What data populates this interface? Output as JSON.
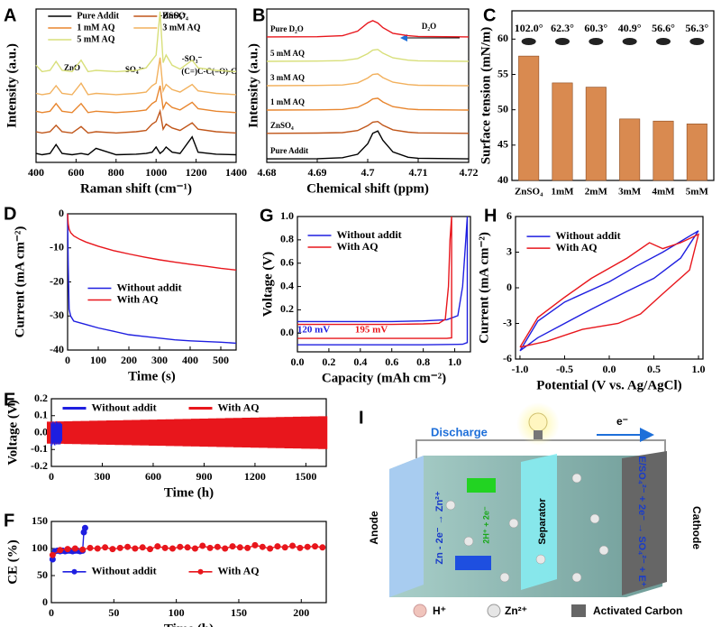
{
  "chart_data": [
    {
      "type": "line",
      "panel_label": "A",
      "xlabel": "Raman shift (cm⁻¹)",
      "ylabel": "Intensity (a.u.)",
      "xlim": [
        400,
        1400
      ],
      "xticks": [
        400,
        600,
        800,
        1000,
        1200,
        1400
      ],
      "ylim": [
        0,
        6
      ],
      "legend": "upper left",
      "legend_columns": 2,
      "annotations": [
        "ZnO",
        "SO₄²⁻",
        "-HSO₄⁻",
        "-SO₃⁻",
        "(C=)C-C(=O)-C"
      ],
      "x": [
        400,
        430,
        470,
        500,
        530,
        580,
        625,
        660,
        700,
        800,
        900,
        950,
        980,
        1000,
        1020,
        1035,
        1050,
        1080,
        1120,
        1180,
        1210,
        1300,
        1400
      ],
      "series": [
        {
          "name": "Pure Addit",
          "color": "#000000",
          "values": [
            0.35,
            0.3,
            0.35,
            0.7,
            0.35,
            0.3,
            0.35,
            0.3,
            0.55,
            0.3,
            0.32,
            0.35,
            0.4,
            0.6,
            0.35,
            0.45,
            0.6,
            0.4,
            0.35,
            1.0,
            0.4,
            0.32,
            0.3
          ]
        },
        {
          "name": "ZnSO₄",
          "color": "#c0561a",
          "values": [
            1.2,
            1.15,
            1.2,
            1.45,
            1.2,
            1.15,
            1.4,
            1.15,
            1.2,
            1.15,
            1.2,
            1.25,
            1.5,
            1.6,
            2.0,
            1.3,
            1.5,
            1.35,
            1.25,
            1.55,
            1.3,
            1.2,
            1.15
          ]
        },
        {
          "name": "1 mM AQ",
          "color": "#e8862f",
          "values": [
            2.0,
            1.95,
            2.0,
            2.3,
            2.0,
            1.95,
            2.3,
            1.95,
            2.0,
            1.95,
            2.0,
            2.05,
            2.3,
            2.4,
            3.0,
            2.1,
            2.35,
            2.15,
            2.05,
            2.35,
            2.1,
            2.0,
            1.95
          ]
        },
        {
          "name": "3 mM AQ",
          "color": "#f2b15e",
          "values": [
            2.7,
            2.65,
            2.7,
            3.0,
            2.7,
            2.65,
            3.1,
            2.65,
            2.7,
            2.65,
            2.7,
            2.75,
            3.0,
            3.1,
            4.1,
            2.8,
            3.05,
            2.85,
            2.75,
            3.05,
            2.8,
            2.7,
            2.65
          ]
        },
        {
          "name": "5 mM AQ",
          "color": "#d8df7a",
          "values": [
            3.8,
            3.55,
            3.6,
            3.95,
            3.6,
            3.55,
            4.0,
            3.55,
            3.6,
            3.55,
            3.6,
            3.7,
            4.0,
            4.2,
            5.9,
            3.9,
            4.2,
            3.8,
            3.65,
            4.0,
            3.7,
            3.6,
            3.55
          ]
        }
      ]
    },
    {
      "type": "line",
      "panel_label": "B",
      "xlabel": "Chemical shift (ppm)",
      "ylabel": "Intensity (a.u.)",
      "xlim": [
        4.68,
        4.72
      ],
      "xticks": [
        4.68,
        4.69,
        4.7,
        4.71,
        4.72
      ],
      "ylim": [
        0,
        6.6
      ],
      "legend": "inline",
      "annotations": [
        "D₂O"
      ],
      "x": [
        4.68,
        4.69,
        4.695,
        4.698,
        4.7,
        4.701,
        4.702,
        4.703,
        4.705,
        4.708,
        4.71,
        4.72
      ],
      "series": [
        {
          "name": "Pure Addit",
          "color": "#000000",
          "values": [
            0.15,
            0.16,
            0.2,
            0.35,
            0.8,
            1.25,
            1.35,
            0.95,
            0.45,
            0.22,
            0.18,
            0.15
          ]
        },
        {
          "name": "ZnSO₄",
          "color": "#c0561a",
          "values": [
            1.25,
            1.26,
            1.28,
            1.37,
            1.58,
            1.73,
            1.76,
            1.6,
            1.4,
            1.3,
            1.27,
            1.25
          ]
        },
        {
          "name": "1 mM AQ",
          "color": "#e8862f",
          "values": [
            2.25,
            2.26,
            2.28,
            2.37,
            2.58,
            2.73,
            2.76,
            2.6,
            2.4,
            2.3,
            2.27,
            2.25
          ]
        },
        {
          "name": "3 mM AQ",
          "color": "#f2b15e",
          "values": [
            3.3,
            3.31,
            3.33,
            3.42,
            3.63,
            3.78,
            3.81,
            3.65,
            3.45,
            3.35,
            3.32,
            3.3
          ]
        },
        {
          "name": "5 mM AQ",
          "color": "#d8df7a",
          "values": [
            4.35,
            4.36,
            4.38,
            4.47,
            4.68,
            4.83,
            4.86,
            4.7,
            4.5,
            4.4,
            4.37,
            4.35
          ]
        },
        {
          "name": "Pure D₂O",
          "color": "#e8161c",
          "values": [
            5.4,
            5.41,
            5.45,
            5.65,
            6.0,
            6.1,
            6.0,
            5.8,
            5.55,
            5.45,
            5.42,
            5.4
          ]
        }
      ]
    },
    {
      "type": "bar",
      "panel_label": "C",
      "ylabel": "Surface tension (mN/m)",
      "categories": [
        "ZnSO₄",
        "1mM",
        "2mM",
        "3mM",
        "4mM",
        "5mM"
      ],
      "values": [
        57.6,
        53.8,
        53.2,
        48.7,
        48.4,
        48.0
      ],
      "color": "#d98a50",
      "bar_annotations": [
        "102.0°",
        "62.3°",
        "60.3°",
        "40.9°",
        "56.6°",
        "56.3°"
      ],
      "ylim": [
        40,
        64
      ],
      "yticks": [
        40,
        45,
        50,
        55,
        60
      ]
    },
    {
      "type": "line",
      "panel_label": "D",
      "xlabel": "Time (s)",
      "ylabel": "Current (mA cm⁻²)",
      "xlim": [
        0,
        550
      ],
      "xticks": [
        0,
        100,
        200,
        300,
        400,
        500
      ],
      "ylim": [
        -40,
        0
      ],
      "yticks": [
        0,
        -10,
        -20,
        -30,
        -40
      ],
      "legend": "center",
      "x": [
        0,
        2,
        5,
        10,
        20,
        40,
        60,
        100,
        150,
        200,
        250,
        300,
        350,
        400,
        450,
        500,
        550
      ],
      "series": [
        {
          "name": "Without addit",
          "color": "#1f1fe0",
          "values": [
            0,
            -15,
            -28,
            -30,
            -31.5,
            -32,
            -32.5,
            -33.5,
            -34.5,
            -35.5,
            -36,
            -36.5,
            -37,
            -37.3,
            -37.5,
            -37.7,
            -38
          ]
        },
        {
          "name": "With AQ",
          "color": "#e8161c",
          "values": [
            0,
            -3,
            -4.5,
            -5.5,
            -6.5,
            -7.5,
            -8.3,
            -9.5,
            -10.8,
            -11.8,
            -12.7,
            -13.5,
            -14.2,
            -14.8,
            -15.4,
            -16,
            -16.5
          ]
        }
      ]
    },
    {
      "type": "line",
      "panel_label": "G",
      "xlabel": "Capacity (mAh cm⁻²)",
      "ylabel": "Voltage (V)",
      "xlim": [
        0,
        1.1
      ],
      "xticks": [
        {
          "value": 0,
          "label": "0.0"
        },
        0.2,
        0.4,
        0.6,
        0.8,
        {
          "value": 1,
          "label": "1.0"
        }
      ],
      "ylim": [
        -0.16,
        1.0
      ],
      "yticks": [
        {
          "value": 0,
          "label": "0.0"
        },
        0.2,
        0.4,
        0.6,
        0.8,
        {
          "value": 1,
          "label": "1.0"
        }
      ],
      "legend": "upper left",
      "annotations": [
        "120 mV",
        "195 mV"
      ],
      "series": [
        {
          "name": "Without addit",
          "color": "#1f1fe0",
          "x": [
            0,
            0.2,
            0.4,
            0.6,
            0.8,
            0.95,
            1.02,
            1.05,
            1.07,
            1.08,
            1.08,
            1.05,
            0.8,
            0.4,
            0
          ],
          "values": [
            0.1,
            0.1,
            0.1,
            0.1,
            0.105,
            0.115,
            0.15,
            0.4,
            0.8,
            1.0,
            -0.08,
            -0.095,
            -0.1,
            -0.1,
            -0.1
          ]
        },
        {
          "name": "With AQ",
          "color": "#e8161c",
          "x": [
            0,
            0.2,
            0.4,
            0.6,
            0.8,
            0.9,
            0.94,
            0.96,
            0.97,
            0.98,
            0.98,
            0.95,
            0.6,
            0.2,
            0
          ],
          "values": [
            0.075,
            0.075,
            0.075,
            0.075,
            0.08,
            0.085,
            0.12,
            0.4,
            0.8,
            1.0,
            -0.04,
            -0.045,
            -0.045,
            -0.045,
            -0.045
          ]
        }
      ]
    },
    {
      "type": "line",
      "panel_label": "H",
      "xlabel": "Potential (V vs. Ag/AgCl)",
      "ylabel": "Current (mA cm⁻²)",
      "xlim": [
        -1.05,
        1.05
      ],
      "xticks": [
        {
          "value": -1,
          "label": "-1.0"
        },
        -0.5,
        {
          "value": 0,
          "label": "0.0"
        },
        0.5,
        {
          "value": 1,
          "label": "1.0"
        }
      ],
      "ylim": [
        -6,
        6
      ],
      "yticks": [
        -6,
        -3,
        0,
        3,
        6
      ],
      "legend": "upper left",
      "series": [
        {
          "name": "Without addit",
          "color": "#1f1fe0",
          "x": [
            -1,
            -0.8,
            -0.5,
            0,
            0.3,
            0.6,
            1.0,
            0.8,
            0.5,
            0.2,
            -0.2,
            -0.5,
            -0.8,
            -1
          ],
          "values": [
            -5.3,
            -2.8,
            -1.2,
            0.5,
            1.8,
            3,
            4.8,
            2.5,
            0.8,
            -0.3,
            -1.8,
            -3,
            -4.2,
            -5.3
          ]
        },
        {
          "name": "With AQ",
          "color": "#e8161c",
          "x": [
            -1,
            -0.8,
            -0.5,
            -0.2,
            0.2,
            0.45,
            0.6,
            0.8,
            1.0,
            0.9,
            0.6,
            0.35,
            0.1,
            -0.3,
            -0.7,
            -1
          ],
          "values": [
            -5,
            -2.5,
            -0.8,
            0.8,
            2.5,
            3.8,
            3.3,
            3.8,
            4.5,
            1.5,
            -0.5,
            -2.2,
            -3.0,
            -3.5,
            -4.5,
            -5
          ]
        }
      ]
    },
    {
      "type": "band",
      "panel_label": "E",
      "xlabel": "Time (h)",
      "ylabel": "Voltage (V)",
      "xlim": [
        0,
        1620
      ],
      "xticks": [
        0,
        300,
        600,
        900,
        1200,
        1500
      ],
      "ylim": [
        -0.2,
        0.2
      ],
      "yticks": [
        -0.2,
        -0.1,
        {
          "value": 0,
          "label": "0.0"
        },
        0.1,
        0.2
      ],
      "legend": "upper center",
      "legend_columns": 2,
      "series": [
        {
          "name": "Without addit",
          "color": "#1f1fe0",
          "x": [
            0,
            5,
            10,
            15,
            20,
            25,
            30,
            35,
            40,
            45,
            50,
            55,
            60
          ],
          "values": [
            0.06,
            0.05,
            0.065,
            0.055,
            0.06,
            0.05,
            0.065,
            0.055,
            0.06,
            0.05,
            0.06,
            0.055,
            0.05
          ],
          "lower_values": [
            -0.08,
            -0.06,
            -0.07,
            -0.06,
            -0.075,
            -0.06,
            -0.07,
            -0.06,
            -0.07,
            -0.06,
            -0.07,
            -0.06,
            -0.05
          ]
        },
        {
          "name": "With AQ",
          "color": "#e8161c",
          "x": [
            0,
            50,
            100,
            150,
            200,
            250,
            300,
            350,
            400,
            450,
            500,
            550,
            600,
            650,
            700,
            750,
            800,
            850,
            900,
            950,
            1000,
            1050,
            1100,
            1150,
            1200,
            1250,
            1300,
            1350,
            1400,
            1450,
            1500,
            1550,
            1600
          ],
          "values": [
            0.065,
            0.066,
            0.067,
            0.068,
            0.069,
            0.07,
            0.071,
            0.072,
            0.073,
            0.074,
            0.075,
            0.076,
            0.077,
            0.078,
            0.079,
            0.08,
            0.081,
            0.082,
            0.083,
            0.084,
            0.085,
            0.086,
            0.087,
            0.088,
            0.089,
            0.09,
            0.091,
            0.092,
            0.093,
            0.094,
            0.095,
            0.096,
            0.097
          ],
          "lower_values": [
            -0.065,
            -0.066,
            -0.067,
            -0.068,
            -0.069,
            -0.07,
            -0.071,
            -0.072,
            -0.073,
            -0.074,
            -0.075,
            -0.076,
            -0.077,
            -0.078,
            -0.079,
            -0.08,
            -0.081,
            -0.082,
            -0.083,
            -0.084,
            -0.085,
            -0.086,
            -0.087,
            -0.088,
            -0.089,
            -0.09,
            -0.091,
            -0.092,
            -0.093,
            -0.094,
            -0.095,
            -0.096,
            -0.097
          ]
        }
      ]
    },
    {
      "type": "scatter",
      "panel_label": "F",
      "xlabel": "Time  (h)",
      "ylabel": "CE (%)",
      "xlim": [
        0,
        220
      ],
      "xticks": [
        0,
        50,
        100,
        150,
        200
      ],
      "ylim": [
        0,
        150
      ],
      "yticks": [
        0,
        50,
        100,
        150
      ],
      "legend": "lower center",
      "legend_columns": 2,
      "series": [
        {
          "name": "Without addit",
          "color": "#1f1fe0",
          "x": [
            1,
            3,
            5,
            7,
            9,
            11,
            13,
            15,
            17,
            19,
            21,
            23,
            25,
            26,
            27
          ],
          "values": [
            80,
            95,
            96,
            95,
            96,
            95,
            96,
            96,
            95,
            96,
            96,
            95,
            96,
            130,
            138
          ]
        },
        {
          "name": "With AQ",
          "color": "#e8161c",
          "x": [
            1,
            7,
            13,
            19,
            25,
            31,
            37,
            43,
            49,
            55,
            61,
            67,
            73,
            79,
            85,
            91,
            97,
            103,
            109,
            115,
            121,
            127,
            133,
            139,
            145,
            151,
            157,
            163,
            169,
            175,
            181,
            187,
            193,
            199,
            205,
            211,
            217
          ],
          "values": [
            88,
            97,
            99,
            100,
            98,
            101,
            100,
            102,
            99,
            101,
            103,
            100,
            102,
            99,
            104,
            101,
            100,
            103,
            102,
            100,
            105,
            101,
            103,
            100,
            104,
            102,
            101,
            106,
            103,
            100,
            104,
            102,
            105,
            101,
            103,
            104,
            102
          ]
        }
      ]
    }
  ],
  "diagram": {
    "panel_label": "I",
    "discharge": "Discharge",
    "electron": "e⁻",
    "anode": "Anode",
    "separator": "Separator",
    "cathode": "Cathode",
    "anode_reaction": "Zn - 2e⁻ → Zn²⁺",
    "proton_reaction": "2H⁺ + 2e⁻",
    "cathode_reaction": "E/SO₄²⁻ + 2e⁻ → SO₄²⁻ + E⁺",
    "legend": [
      "H⁺",
      "Zn²⁺",
      "Activated Carbon"
    ]
  }
}
